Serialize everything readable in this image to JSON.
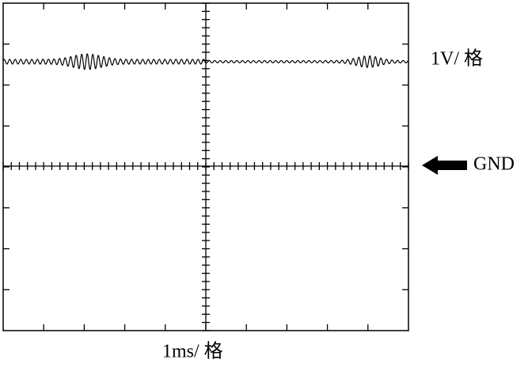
{
  "labels": {
    "volts_per_div": "1V/ 格",
    "gnd": "GND",
    "time_per_div": "1ms/ 格"
  }
}
